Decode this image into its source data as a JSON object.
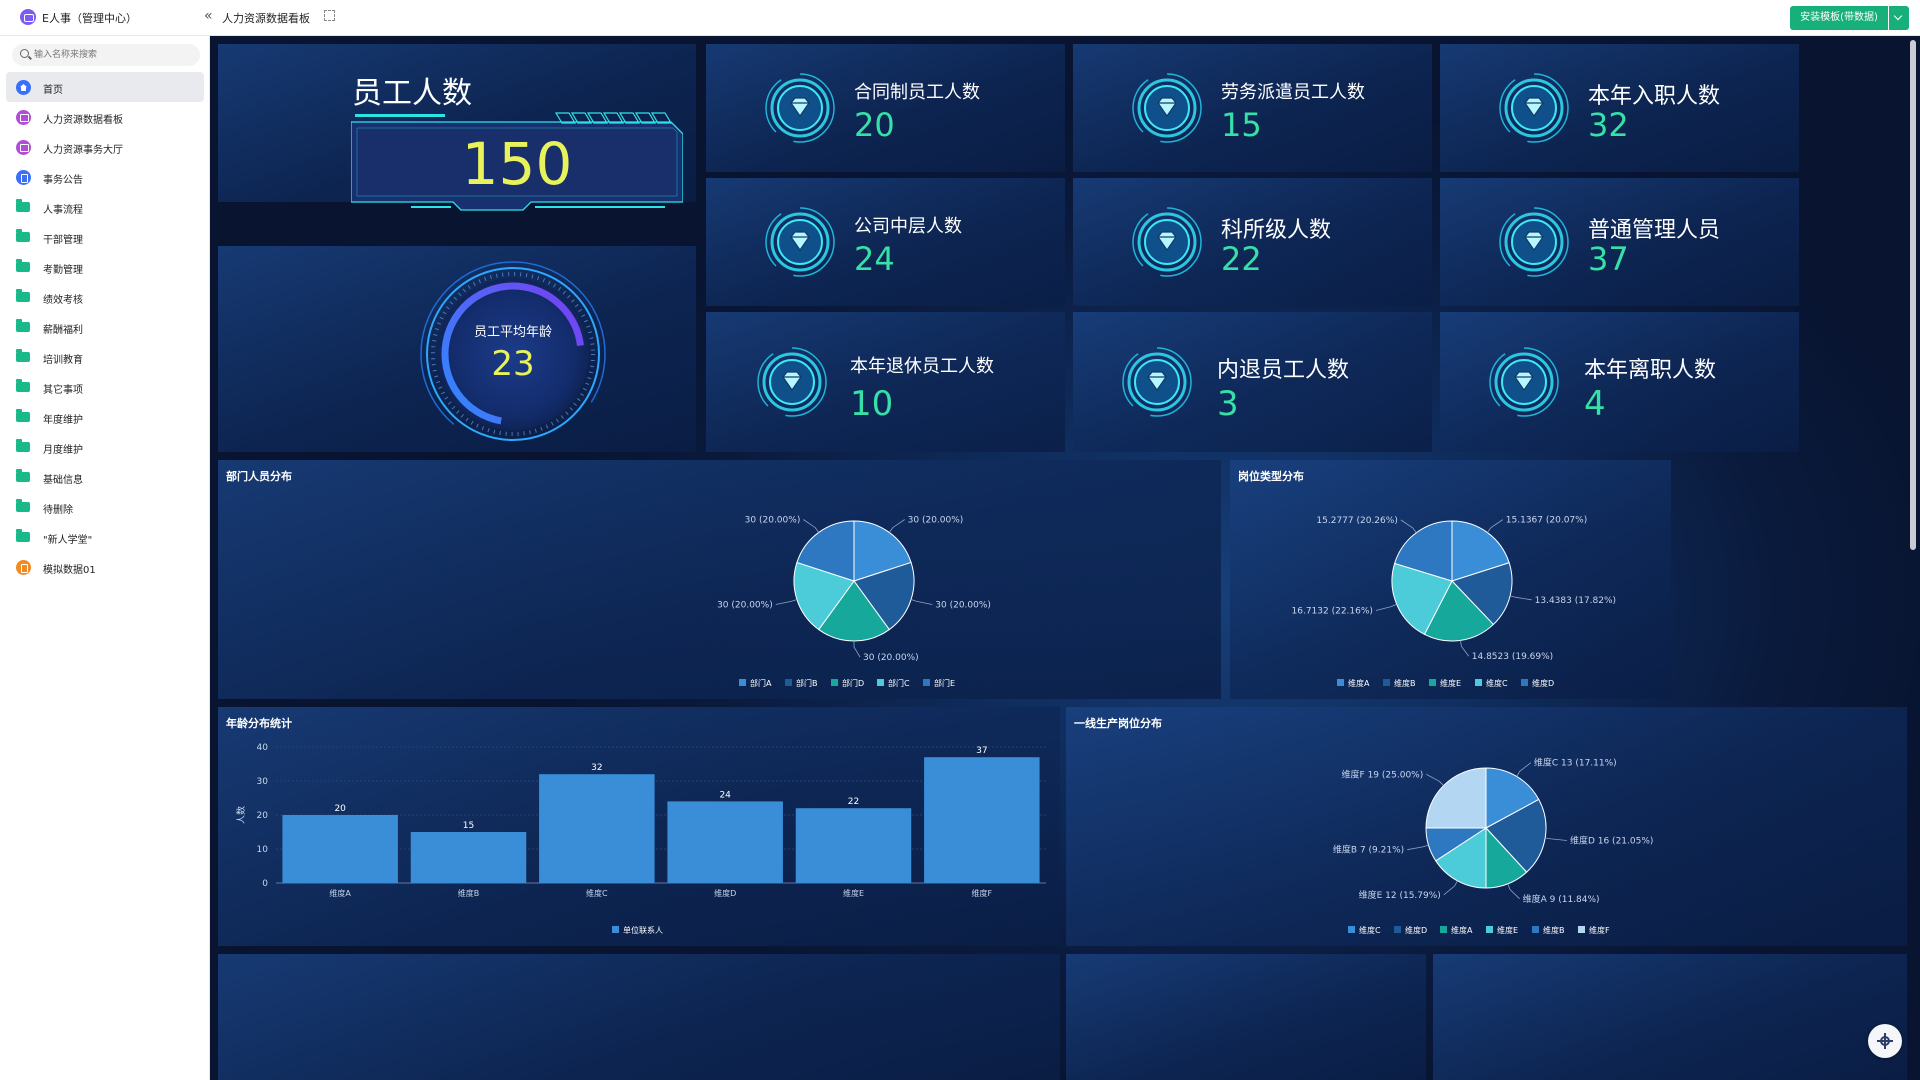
{
  "app": {
    "title": "E人事（管理中心）",
    "tab_title": "人力资源数据看板",
    "install_label": "安装模板(带数据)"
  },
  "sidebar": {
    "search_placeholder": "输入名称来搜索",
    "items": [
      {
        "label": "首页",
        "icon": "home-icon",
        "active": true
      },
      {
        "label": "人力资源数据看板",
        "icon": "dashboard-icon"
      },
      {
        "label": "人力资源事务大厅",
        "icon": "dashboard-icon"
      },
      {
        "label": "事务公告",
        "icon": "document-icon"
      },
      {
        "label": "人事流程",
        "icon": "folder-icon"
      },
      {
        "label": "干部管理",
        "icon": "folder-icon"
      },
      {
        "label": "考勤管理",
        "icon": "folder-icon"
      },
      {
        "label": "绩效考核",
        "icon": "folder-icon"
      },
      {
        "label": "薪酬福利",
        "icon": "folder-icon"
      },
      {
        "label": "培训教育",
        "icon": "folder-icon"
      },
      {
        "label": "其它事项",
        "icon": "folder-icon"
      },
      {
        "label": "年度维护",
        "icon": "folder-icon"
      },
      {
        "label": "月度维护",
        "icon": "folder-icon"
      },
      {
        "label": "基础信息",
        "icon": "folder-icon"
      },
      {
        "label": "待删除",
        "icon": "folder-icon"
      },
      {
        "label": "\"新人学堂\"",
        "icon": "folder-icon"
      },
      {
        "label": "模拟数据01",
        "icon": "data-icon"
      }
    ]
  },
  "kpi": {
    "employees_label": "员工人数",
    "employees_value": "150",
    "avg_age_label": "员工平均年龄",
    "avg_age_value": "23"
  },
  "stats": [
    {
      "label": "合同制员工人数",
      "value": "20"
    },
    {
      "label": "劳务派遣员工人数",
      "value": "15"
    },
    {
      "label": "本年入职人数",
      "value": "32"
    },
    {
      "label": "公司中层人数",
      "value": "24"
    },
    {
      "label": "科所级人数",
      "value": "22"
    },
    {
      "label": "普通管理人员",
      "value": "37"
    },
    {
      "label": "本年退休员工人数",
      "value": "10"
    },
    {
      "label": "内退员工人数",
      "value": "3"
    },
    {
      "label": "本年离职人数",
      "value": "4"
    }
  ],
  "colors": {
    "accent_green": "#36e0a6",
    "accent_yellow": "#e8f25a",
    "pie": [
      "#3a8ed8",
      "#1f5a99",
      "#17a89c",
      "#4ccbd8",
      "#2e78c2",
      "#b3d6f2"
    ]
  },
  "chart_data": [
    {
      "type": "pie",
      "title": "部门人员分布",
      "slices": [
        {
          "name": "部门A",
          "value": 30,
          "pct": "20.00%",
          "color": "#3a8ed8"
        },
        {
          "name": "部门B",
          "value": 30,
          "pct": "20.00%",
          "color": "#1f5a99"
        },
        {
          "name": "部门D",
          "value": 30,
          "pct": "20.00%",
          "color": "#17a89c"
        },
        {
          "name": "部门C",
          "value": 30,
          "pct": "20.00%",
          "color": "#4ccbd8"
        },
        {
          "name": "部门E",
          "value": 30,
          "pct": "20.00%",
          "color": "#2e78c2"
        }
      ],
      "legend": "bottom"
    },
    {
      "type": "pie",
      "title": "岗位类型分布",
      "slices": [
        {
          "name": "维度A",
          "value": 15.1367,
          "pct": "20.07%",
          "color": "#3a8ed8"
        },
        {
          "name": "维度B",
          "value": 13.4383,
          "pct": "17.82%",
          "color": "#1f5a99"
        },
        {
          "name": "维度E",
          "value": 14.8523,
          "pct": "19.69%",
          "color": "#17a89c"
        },
        {
          "name": "维度C",
          "value": 16.7132,
          "pct": "22.16%",
          "color": "#4ccbd8"
        },
        {
          "name": "维度D",
          "value": 15.2777,
          "pct": "20.26%",
          "color": "#2e78c2"
        }
      ],
      "legend": "bottom"
    },
    {
      "type": "bar",
      "title": "年龄分布统计",
      "categories": [
        "维度A",
        "维度B",
        "维度C",
        "维度D",
        "维度E",
        "维度F"
      ],
      "series": [
        {
          "name": "单位联系人",
          "values": [
            20,
            15,
            32,
            24,
            22,
            37
          ],
          "color": "#3a8ed8"
        }
      ],
      "ylabel": "人数",
      "ylim": [
        0,
        40
      ],
      "yticks": [
        0,
        10,
        20,
        30,
        40
      ],
      "legend": "bottom"
    },
    {
      "type": "pie",
      "title": "一线生产岗位分布",
      "slices": [
        {
          "name": "维度C",
          "value": 13,
          "pct": "17.11%",
          "color": "#3a8ed8"
        },
        {
          "name": "维度D",
          "value": 16,
          "pct": "21.05%",
          "color": "#1f5a99"
        },
        {
          "name": "维度A",
          "value": 9,
          "pct": "11.84%",
          "color": "#17a89c"
        },
        {
          "name": "维度E",
          "value": 12,
          "pct": "15.79%",
          "color": "#4ccbd8"
        },
        {
          "name": "维度B",
          "value": 7,
          "pct": "9.21%",
          "color": "#2e78c2"
        },
        {
          "name": "维度F",
          "value": 19,
          "pct": "25.00%",
          "color": "#b3d6f2"
        }
      ],
      "legend": "bottom"
    }
  ]
}
